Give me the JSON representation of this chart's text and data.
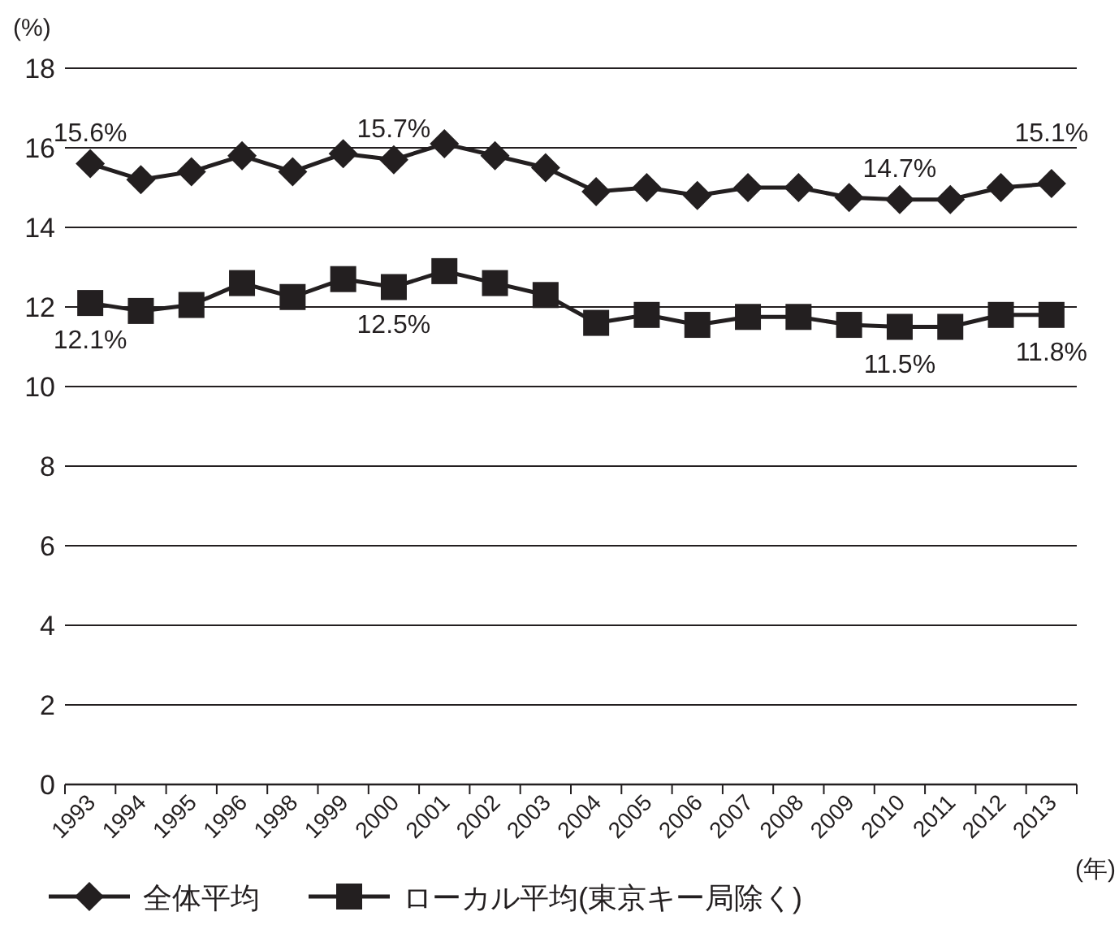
{
  "chart_data": {
    "type": "line",
    "ylabel": "(%)",
    "xlabel": "(年)",
    "categories": [
      "1993",
      "1994",
      "1995",
      "1996",
      "1998",
      "1999",
      "2000",
      "2001",
      "2002",
      "2003",
      "2004",
      "2005",
      "2006",
      "2007",
      "2008",
      "2009",
      "2010",
      "2011",
      "2012",
      "2013"
    ],
    "series": [
      {
        "name": "全体平均",
        "color": "#231f20",
        "marker": "diamond",
        "values": [
          15.6,
          15.2,
          15.4,
          15.8,
          15.4,
          15.85,
          15.7,
          16.1,
          15.8,
          15.5,
          14.9,
          15.0,
          14.8,
          15.0,
          15.0,
          14.75,
          14.7,
          14.7,
          15.0,
          15.1
        ],
        "value_labels": [
          "15.6%",
          null,
          null,
          null,
          null,
          null,
          "15.7%",
          null,
          null,
          null,
          null,
          null,
          null,
          null,
          null,
          null,
          "14.7%",
          null,
          null,
          "15.1%"
        ]
      },
      {
        "name": "ローカル平均(東京キー局除く)",
        "color": "#231f20",
        "marker": "square",
        "values": [
          12.1,
          11.9,
          12.05,
          12.6,
          12.25,
          12.7,
          12.5,
          12.9,
          12.6,
          12.3,
          11.6,
          11.8,
          11.55,
          11.75,
          11.75,
          11.55,
          11.5,
          11.5,
          11.8,
          11.8
        ],
        "value_labels": [
          "12.1%",
          null,
          null,
          null,
          null,
          null,
          "12.5%",
          null,
          null,
          null,
          null,
          null,
          null,
          null,
          null,
          null,
          "11.5%",
          null,
          null,
          "11.8%"
        ]
      }
    ],
    "ylim": [
      0,
      18
    ],
    "yticks": [
      0,
      2,
      4,
      6,
      8,
      10,
      12,
      14,
      16,
      18
    ],
    "grid": "y",
    "legend": "bottom"
  }
}
